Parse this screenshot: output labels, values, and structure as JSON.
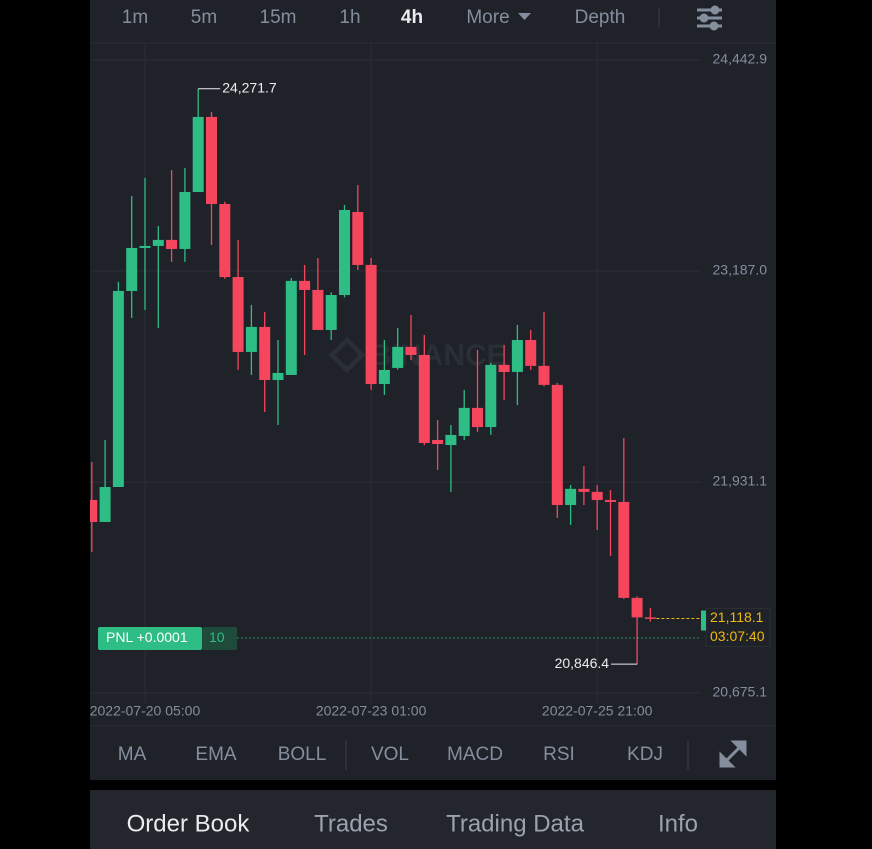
{
  "timeframes": [
    "1m",
    "5m",
    "15m",
    "1h",
    "4h",
    "More",
    "Depth"
  ],
  "chart_data": {
    "type": "candlestick",
    "categories": [
      null,
      null,
      null,
      null,
      "2022-07-20 05:00",
      null,
      null,
      null,
      null,
      null,
      null,
      null,
      null,
      null,
      null,
      null,
      null,
      null,
      null,
      null,
      null,
      "2022-07-23 01:00",
      null,
      null,
      null,
      null,
      null,
      null,
      null,
      null,
      null,
      null,
      null,
      null,
      null,
      null,
      null,
      null,
      "2022-07-25 21:00",
      null,
      null,
      null,
      null
    ],
    "open": [
      21824,
      21693,
      21901,
      23068,
      23324,
      23336,
      23372,
      23318,
      23657,
      24104,
      23586,
      23151,
      22705,
      22854,
      22538,
      22568,
      23128,
      23074,
      22836,
      23044,
      23538,
      23223,
      22514,
      22610,
      22735,
      22687,
      22181,
      22151,
      22205,
      22372,
      22258,
      22628,
      22586,
      22776,
      22622,
      22509,
      21794,
      21890,
      21872,
      21824,
      21812,
      21241,
      21125
    ],
    "high": [
      22050,
      22181,
      23122,
      23633,
      23741,
      23455,
      23788,
      23800,
      24271.7,
      24133,
      23600,
      23372,
      22985,
      22943,
      22776,
      23145,
      23223,
      23264,
      23060,
      23580,
      23699,
      23264,
      22776,
      22848,
      22925,
      22806,
      22300,
      22270,
      22479,
      22717,
      22640,
      22747,
      22866,
      22836,
      22943,
      22520,
      21913,
      22026,
      21913,
      21883,
      22193,
      21250,
      21180
    ],
    "low": [
      21514,
      21693,
      21901,
      22907,
      22955,
      22848,
      23241,
      23241,
      23657,
      23342,
      23140,
      22598,
      22568,
      22348,
      22270,
      22568,
      22687,
      22836,
      22776,
      23030,
      23193,
      22479,
      22449,
      22600,
      22657,
      22151,
      22003,
      21872,
      22181,
      22229,
      22211,
      22419,
      22389,
      22598,
      22500,
      21717,
      21675,
      21794,
      21645,
      21491,
      21235,
      20846.4,
      21100
    ],
    "close": [
      21693,
      21901,
      23068,
      23324,
      23336,
      23372,
      23318,
      23657,
      24104,
      23586,
      23151,
      22705,
      22854,
      22538,
      22580,
      23128,
      23074,
      22836,
      23044,
      23550,
      23223,
      22514,
      22598,
      22735,
      22687,
      22163,
      22157,
      22211,
      22372,
      22258,
      22628,
      22586,
      22776,
      22622,
      22509,
      21794,
      21890,
      21872,
      21824,
      21812,
      21241,
      21125,
      21118.1
    ],
    "up_color": "#2ebd85",
    "down_color": "#f6465d",
    "ylim": [
      20615.3,
      24544.1
    ],
    "yticks": [
      {
        "value": 24442.9,
        "label": "24,442.9"
      },
      {
        "value": 23187.0,
        "label": "23,187.0"
      },
      {
        "value": 21931.1,
        "label": "21,931.1"
      },
      {
        "value": 20675.1,
        "label": "20,675.1"
      }
    ],
    "grid": true,
    "high_label": "24,271.7",
    "low_label": "20,846.4",
    "last_price": {
      "value": 21118.1,
      "label": "21,118.1"
    },
    "countdown": "03:07:40",
    "watermark": "BINANCE"
  },
  "position": {
    "pnl": "PNL +0.0001",
    "quantity": "10"
  },
  "indicators": [
    "MA",
    "EMA",
    "BOLL",
    "VOL",
    "MACD",
    "RSI",
    "KDJ"
  ],
  "bottom_tabs": [
    "Order Book",
    "Trades",
    "Trading Data",
    "Info"
  ]
}
